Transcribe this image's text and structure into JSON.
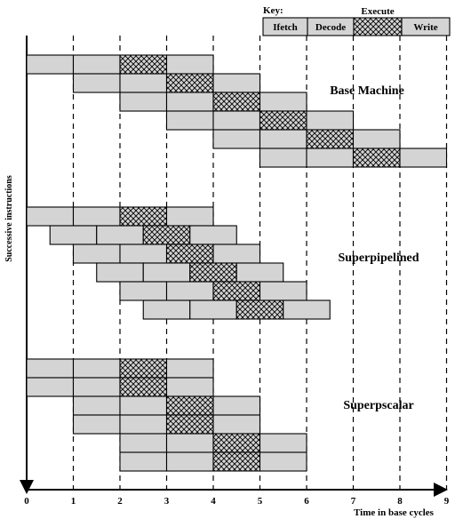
{
  "key": {
    "title": "Key:",
    "execute_label": "Execute",
    "stages": [
      "Ifetch",
      "Decode",
      "",
      "Write"
    ]
  },
  "axis": {
    "x_title": "Time in base cycles",
    "y_title": "Successive instructions",
    "ticks": [
      "0",
      "1",
      "2",
      "3",
      "4",
      "5",
      "6",
      "7",
      "8",
      "9"
    ]
  },
  "sections": [
    {
      "label": "Base Machine",
      "row_step": 1.0,
      "instructions": [
        {
          "start": 0,
          "row": 0
        },
        {
          "start": 1,
          "row": 1
        },
        {
          "start": 2,
          "row": 2
        },
        {
          "start": 3,
          "row": 3
        },
        {
          "start": 4,
          "row": 4
        },
        {
          "start": 5,
          "row": 5
        }
      ]
    },
    {
      "label": "Superpipelined",
      "row_step": 1.0,
      "instructions": [
        {
          "start": 0,
          "row": 0
        },
        {
          "start": 0.5,
          "row": 1
        },
        {
          "start": 1,
          "row": 2
        },
        {
          "start": 1.5,
          "row": 3
        },
        {
          "start": 2,
          "row": 4
        },
        {
          "start": 2.5,
          "row": 5
        }
      ]
    },
    {
      "label": "Superpscalar",
      "row_step": 1.0,
      "instructions": [
        {
          "start": 0,
          "row": 0
        },
        {
          "start": 0,
          "row": 1
        },
        {
          "start": 1,
          "row": 2
        },
        {
          "start": 1,
          "row": 3
        },
        {
          "start": 2,
          "row": 4
        },
        {
          "start": 2,
          "row": 5
        }
      ]
    }
  ],
  "colors": {
    "stage_fill": "#d4d4d4",
    "outline": "#000000"
  }
}
